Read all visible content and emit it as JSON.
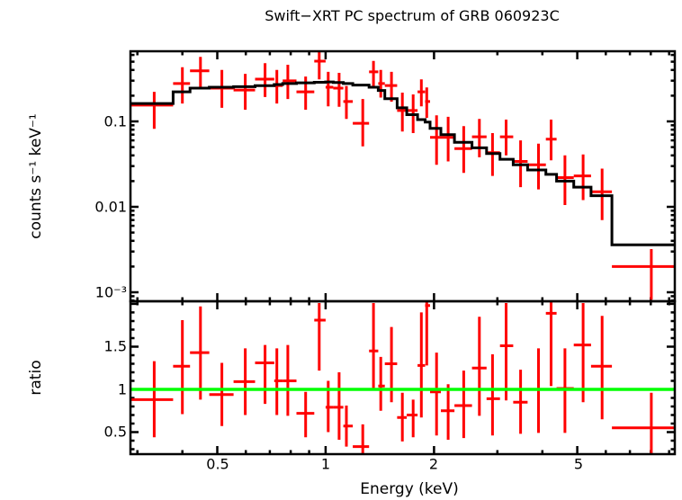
{
  "title": "Swift−XRT PC spectrum of GRB 060923C",
  "axes": {
    "x_label": "Energy (keV)",
    "x_tick_labels": [
      "0.5",
      "1",
      "2",
      "5"
    ],
    "spectrum_y_label": "counts s⁻¹ keV⁻¹",
    "spectrum_y_tick_labels": [
      "0.1",
      "0.01",
      "10⁻³"
    ],
    "ratio_y_label": "ratio",
    "ratio_y_tick_labels": [
      "1.5",
      "1",
      "0.5"
    ]
  },
  "colors": {
    "data": "#ff0000",
    "model": "#000000",
    "reference": "#00ff00",
    "frame": "#000000",
    "background": "#ffffff"
  },
  "chart_data": [
    {
      "type": "scatter",
      "name": "spectrum",
      "title": "Swift−XRT PC spectrum of GRB 060923C",
      "xlabel": "Energy (keV)",
      "ylabel": "counts s⁻¹ keV⁻¹",
      "xscale": "log",
      "yscale": "log",
      "xlim": [
        0.287,
        9.33
      ],
      "ylim": [
        0.000785,
        0.662
      ],
      "xticks_major": [
        0.5,
        1,
        2,
        5
      ],
      "xticks_minor": [
        0.3,
        0.4,
        0.6,
        0.7,
        0.8,
        0.9,
        3,
        4,
        6,
        7,
        8,
        9
      ],
      "yticks_major": [
        0.001,
        0.01,
        0.1
      ],
      "grid": false,
      "legend": "none",
      "points_format": [
        "energy_keV",
        "bin_lo",
        "bin_hi",
        "counts",
        "err_lo",
        "err_hi"
      ],
      "points": [
        [
          0.334,
          0.287,
          0.377,
          0.155,
          0.082,
          0.222
        ],
        [
          0.4,
          0.377,
          0.42,
          0.277,
          0.162,
          0.43
        ],
        [
          0.449,
          0.42,
          0.475,
          0.39,
          0.251,
          0.57
        ],
        [
          0.515,
          0.475,
          0.555,
          0.245,
          0.144,
          0.4
        ],
        [
          0.598,
          0.555,
          0.637,
          0.233,
          0.137,
          0.36
        ],
        [
          0.679,
          0.637,
          0.72,
          0.312,
          0.193,
          0.48
        ],
        [
          0.732,
          0.72,
          0.76,
          0.263,
          0.162,
          0.4
        ],
        [
          0.785,
          0.76,
          0.83,
          0.298,
          0.183,
          0.46
        ],
        [
          0.88,
          0.83,
          0.93,
          0.222,
          0.137,
          0.335
        ],
        [
          0.96,
          0.93,
          1.0,
          0.507,
          0.31,
          0.68
        ],
        [
          1.017,
          1.0,
          1.05,
          0.251,
          0.15,
          0.38
        ],
        [
          1.09,
          1.05,
          1.12,
          0.245,
          0.148,
          0.37
        ],
        [
          1.142,
          1.12,
          1.19,
          0.171,
          0.107,
          0.26
        ],
        [
          1.268,
          1.19,
          1.32,
          0.095,
          0.051,
          0.183
        ],
        [
          1.358,
          1.32,
          1.4,
          0.38,
          0.26,
          0.51
        ],
        [
          1.423,
          1.4,
          1.46,
          0.277,
          0.19,
          0.4
        ],
        [
          1.524,
          1.46,
          1.58,
          0.263,
          0.17,
          0.38
        ],
        [
          1.634,
          1.58,
          1.68,
          0.134,
          0.076,
          0.217
        ],
        [
          1.75,
          1.68,
          1.8,
          0.134,
          0.073,
          0.207
        ],
        [
          1.844,
          1.8,
          1.89,
          0.222,
          0.15,
          0.31
        ],
        [
          1.909,
          1.89,
          1.95,
          0.171,
          0.11,
          0.25
        ],
        [
          2.033,
          1.95,
          2.09,
          0.065,
          0.031,
          0.118
        ],
        [
          2.19,
          2.09,
          2.28,
          0.065,
          0.034,
          0.113
        ],
        [
          2.419,
          2.28,
          2.55,
          0.048,
          0.025,
          0.088
        ],
        [
          2.673,
          2.55,
          2.8,
          0.066,
          0.038,
          0.107
        ],
        [
          2.908,
          2.8,
          3.05,
          0.043,
          0.023,
          0.073
        ],
        [
          3.172,
          3.05,
          3.32,
          0.066,
          0.04,
          0.105
        ],
        [
          3.479,
          3.32,
          3.64,
          0.034,
          0.017,
          0.06
        ],
        [
          3.902,
          3.64,
          4.09,
          0.031,
          0.016,
          0.055
        ],
        [
          4.23,
          4.09,
          4.38,
          0.062,
          0.035,
          0.105
        ],
        [
          4.62,
          4.38,
          4.89,
          0.022,
          0.0105,
          0.04
        ],
        [
          5.19,
          4.89,
          5.46,
          0.023,
          0.012,
          0.041
        ],
        [
          5.86,
          5.46,
          6.24,
          0.015,
          0.007,
          0.028
        ],
        [
          8.03,
          6.24,
          9.4,
          0.002,
          0.00082,
          0.0032
        ]
      ],
      "model_bins_format": [
        "bin_lo",
        "bin_hi",
        "model_counts"
      ],
      "model_bins": [
        [
          0.287,
          0.377,
          0.162
        ],
        [
          0.377,
          0.42,
          0.222
        ],
        [
          0.42,
          0.475,
          0.245
        ],
        [
          0.475,
          0.555,
          0.251
        ],
        [
          0.555,
          0.637,
          0.255
        ],
        [
          0.637,
          0.72,
          0.262
        ],
        [
          0.72,
          0.76,
          0.27
        ],
        [
          0.76,
          0.83,
          0.277
        ],
        [
          0.83,
          0.93,
          0.283
        ],
        [
          0.93,
          1.0,
          0.287
        ],
        [
          1.0,
          1.05,
          0.29
        ],
        [
          1.05,
          1.12,
          0.285
        ],
        [
          1.12,
          1.19,
          0.277
        ],
        [
          1.19,
          1.32,
          0.266
        ],
        [
          1.32,
          1.4,
          0.251
        ],
        [
          1.4,
          1.46,
          0.23
        ],
        [
          1.46,
          1.58,
          0.184
        ],
        [
          1.58,
          1.68,
          0.144
        ],
        [
          1.68,
          1.8,
          0.12
        ],
        [
          1.8,
          1.89,
          0.105
        ],
        [
          1.89,
          1.95,
          0.098
        ],
        [
          1.95,
          2.09,
          0.083
        ],
        [
          2.09,
          2.28,
          0.07
        ],
        [
          2.28,
          2.55,
          0.057
        ],
        [
          2.55,
          2.8,
          0.049
        ],
        [
          2.8,
          3.05,
          0.042
        ],
        [
          3.05,
          3.32,
          0.036
        ],
        [
          3.32,
          3.64,
          0.031
        ],
        [
          3.64,
          4.09,
          0.027
        ],
        [
          4.09,
          4.38,
          0.024
        ],
        [
          4.38,
          4.89,
          0.02
        ],
        [
          4.89,
          5.46,
          0.017
        ],
        [
          5.46,
          6.24,
          0.0135
        ],
        [
          6.24,
          9.4,
          0.0036
        ]
      ]
    },
    {
      "type": "scatter",
      "name": "ratio",
      "xlabel": "Energy (keV)",
      "ylabel": "ratio",
      "xscale": "log",
      "yscale": "linear",
      "xlim": [
        0.287,
        9.33
      ],
      "ylim": [
        0.242,
        2.031
      ],
      "yticks_major": [
        0.5,
        1,
        1.5,
        2
      ],
      "reference_line": 1,
      "grid": false,
      "points_format": [
        "energy_keV",
        "bin_lo",
        "bin_hi",
        "ratio",
        "err_lo",
        "err_hi"
      ],
      "points": [
        [
          0.334,
          0.287,
          0.377,
          0.88,
          0.44,
          1.33
        ],
        [
          0.4,
          0.377,
          0.42,
          1.27,
          0.71,
          1.81
        ],
        [
          0.449,
          0.42,
          0.475,
          1.43,
          0.88,
          1.97
        ],
        [
          0.515,
          0.475,
          0.555,
          0.94,
          0.57,
          1.31
        ],
        [
          0.598,
          0.555,
          0.637,
          1.09,
          0.7,
          1.48
        ],
        [
          0.679,
          0.637,
          0.72,
          1.31,
          0.83,
          1.52
        ],
        [
          0.732,
          0.72,
          0.76,
          1.1,
          0.7,
          1.48
        ],
        [
          0.785,
          0.76,
          0.83,
          1.1,
          0.69,
          1.52
        ],
        [
          0.88,
          0.83,
          0.93,
          0.72,
          0.44,
          0.97
        ],
        [
          0.96,
          0.93,
          1.0,
          1.81,
          1.22,
          2.01
        ],
        [
          1.017,
          1.0,
          1.05,
          0.79,
          0.5,
          1.1
        ],
        [
          1.09,
          1.05,
          1.12,
          0.79,
          0.41,
          1.2
        ],
        [
          1.142,
          1.12,
          1.19,
          0.57,
          0.33,
          0.81
        ],
        [
          1.268,
          1.19,
          1.32,
          0.33,
          0.2,
          0.59
        ],
        [
          1.358,
          1.32,
          1.4,
          1.45,
          1.0,
          2.01
        ],
        [
          1.423,
          1.4,
          1.46,
          1.04,
          0.75,
          1.38
        ],
        [
          1.524,
          1.46,
          1.58,
          1.3,
          0.85,
          1.73
        ],
        [
          1.634,
          1.58,
          1.68,
          0.67,
          0.39,
          0.96
        ],
        [
          1.75,
          1.68,
          1.8,
          0.7,
          0.44,
          0.88
        ],
        [
          1.844,
          1.8,
          1.89,
          1.28,
          0.67,
          1.9
        ],
        [
          1.909,
          1.89,
          1.95,
          1.98,
          1.28,
          2.02
        ],
        [
          2.033,
          1.95,
          2.09,
          0.97,
          0.46,
          1.43
        ],
        [
          2.19,
          2.09,
          2.28,
          0.75,
          0.41,
          1.06
        ],
        [
          2.419,
          2.28,
          2.55,
          0.81,
          0.43,
          1.22
        ],
        [
          2.673,
          2.55,
          2.8,
          1.25,
          0.69,
          1.85
        ],
        [
          2.908,
          2.8,
          3.05,
          0.89,
          0.46,
          1.41
        ],
        [
          3.172,
          3.05,
          3.32,
          1.51,
          0.87,
          2.01
        ],
        [
          3.479,
          3.32,
          3.64,
          0.85,
          0.48,
          1.23
        ],
        [
          3.902,
          3.64,
          4.09,
          1.0,
          0.49,
          1.48
        ],
        [
          4.23,
          4.09,
          4.38,
          1.89,
          1.04,
          2.02
        ],
        [
          4.62,
          4.38,
          4.89,
          1.01,
          0.49,
          1.48
        ],
        [
          5.19,
          4.89,
          5.46,
          1.52,
          0.85,
          2.01
        ],
        [
          5.86,
          5.46,
          6.24,
          1.27,
          0.65,
          1.86
        ],
        [
          8.03,
          6.24,
          9.4,
          0.55,
          0.2,
          0.96
        ]
      ]
    }
  ]
}
